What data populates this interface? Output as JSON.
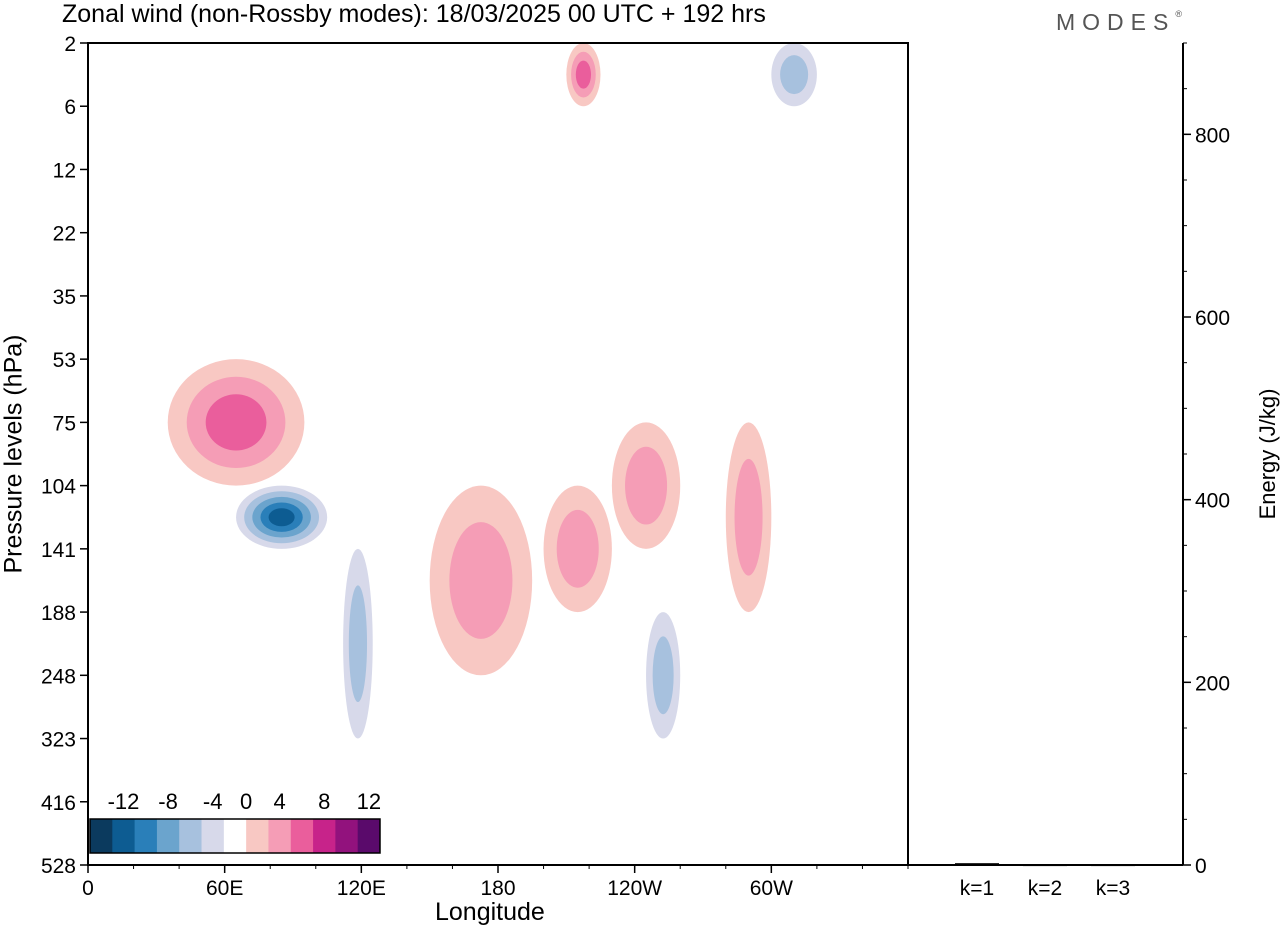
{
  "title": "Zonal wind (non-Rossby modes):  18/03/2025  00 UTC  + 192 hrs",
  "brand": {
    "name": "MODES",
    "mark": "®"
  },
  "chart_data": [
    {
      "type": "heatmap",
      "title": "Zonal wind (non-Rossby modes):  18/03/2025  00 UTC  + 192 hrs",
      "xlabel": "Longitude",
      "ylabel": "Pressure levels (hPa)",
      "x_ticks": [
        "0",
        "60E",
        "120E",
        "180",
        "120W",
        "60W"
      ],
      "x_tick_values": [
        0,
        60,
        120,
        180,
        240,
        300
      ],
      "xlim": [
        0,
        360
      ],
      "y_ticks": [
        "2",
        "6",
        "12",
        "22",
        "35",
        "53",
        "75",
        "104",
        "141",
        "188",
        "248",
        "323",
        "416",
        "528"
      ],
      "y_scale": "pressure levels (top 2 hPa, bottom 528 hPa)",
      "colorbar": {
        "labels": [
          "-12",
          "-8",
          "-4",
          "0",
          "4",
          "8",
          "12"
        ],
        "levels": [
          -14,
          -12,
          -10,
          -8,
          -6,
          -4,
          -2,
          2,
          4,
          6,
          8,
          10,
          12,
          14
        ],
        "colors": [
          "#0b3a5e",
          "#0d5c92",
          "#2a7fb9",
          "#6ba4cd",
          "#a7c1de",
          "#d7d9ea",
          "#ffffff",
          "#f8c8c3",
          "#f59db6",
          "#ea5e9c",
          "#c7238a",
          "#92127d",
          "#5a0a6b"
        ]
      },
      "features": [
        {
          "name": "negative core",
          "lon": 65,
          "lon2": 105,
          "p_top": 104,
          "p_bottom": 141,
          "min_value": -12
        },
        {
          "name": "negative tongue",
          "lon": 112,
          "lon2": 125,
          "p_top": 141,
          "p_bottom": 323,
          "value": -6
        },
        {
          "name": "positive band",
          "lon": 35,
          "lon2": 95,
          "p_top": 53,
          "p_bottom": 104,
          "max_value": 8
        },
        {
          "name": "positive lobe",
          "lon": 150,
          "lon2": 195,
          "p_top": 104,
          "p_bottom": 248,
          "max_value": 6
        },
        {
          "name": "positive lobe",
          "lon": 200,
          "lon2": 230,
          "p_top": 104,
          "p_bottom": 188,
          "max_value": 6
        },
        {
          "name": "positive lobe",
          "lon": 230,
          "lon2": 260,
          "p_top": 75,
          "p_bottom": 141,
          "max_value": 6
        },
        {
          "name": "positive lobe",
          "lon": 280,
          "lon2": 300,
          "p_top": 75,
          "p_bottom": 188,
          "max_value": 6
        },
        {
          "name": "positive upper patch",
          "lon": 210,
          "lon2": 225,
          "p_top": 2,
          "p_bottom": 6,
          "max_value": 8
        },
        {
          "name": "negative upper patch",
          "lon": 300,
          "lon2": 320,
          "p_top": 2,
          "p_bottom": 6,
          "min_value": -6
        },
        {
          "name": "negative lobe",
          "lon": 245,
          "lon2": 260,
          "p_top": 188,
          "p_bottom": 323,
          "min_value": -6
        }
      ],
      "grid": false
    },
    {
      "type": "bar",
      "categories": [
        "k=1",
        "k=2",
        "k=3"
      ],
      "values": [
        2,
        1,
        1
      ],
      "ylabel": "Energy (J/kg)",
      "y_ticks": [
        "0",
        "200",
        "400",
        "600",
        "800"
      ],
      "ylim": [
        0,
        900
      ],
      "grid": false
    }
  ]
}
